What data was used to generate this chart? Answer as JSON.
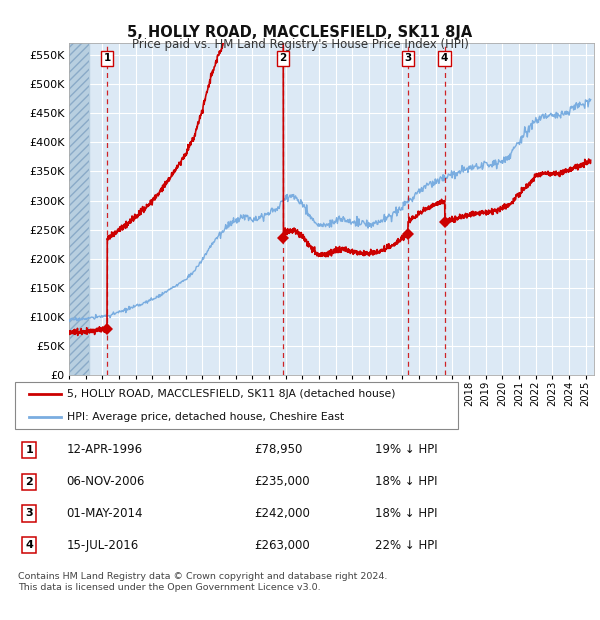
{
  "title": "5, HOLLY ROAD, MACCLESFIELD, SK11 8JA",
  "subtitle": "Price paid vs. HM Land Registry's House Price Index (HPI)",
  "ytick_values": [
    0,
    50000,
    100000,
    150000,
    200000,
    250000,
    300000,
    350000,
    400000,
    450000,
    500000,
    550000
  ],
  "ylim": [
    0,
    570000
  ],
  "xlim_start": 1994.0,
  "xlim_end": 2025.5,
  "plot_bg_color": "#dce9f5",
  "grid_color": "#ffffff",
  "sales": [
    {
      "num": 1,
      "date_num": 1996.28,
      "price": 78950,
      "label": "1"
    },
    {
      "num": 2,
      "date_num": 2006.85,
      "price": 235000,
      "label": "2"
    },
    {
      "num": 3,
      "date_num": 2014.33,
      "price": 242000,
      "label": "3"
    },
    {
      "num": 4,
      "date_num": 2016.54,
      "price": 263000,
      "label": "4"
    }
  ],
  "legend_line1": "5, HOLLY ROAD, MACCLESFIELD, SK11 8JA (detached house)",
  "legend_line2": "HPI: Average price, detached house, Cheshire East",
  "table_rows": [
    {
      "num": "1",
      "date": "12-APR-1996",
      "price": "£78,950",
      "pct": "19% ↓ HPI"
    },
    {
      "num": "2",
      "date": "06-NOV-2006",
      "price": "£235,000",
      "pct": "18% ↓ HPI"
    },
    {
      "num": "3",
      "date": "01-MAY-2014",
      "price": "£242,000",
      "pct": "18% ↓ HPI"
    },
    {
      "num": "4",
      "date": "15-JUL-2016",
      "price": "£263,000",
      "pct": "22% ↓ HPI"
    }
  ],
  "footer": "Contains HM Land Registry data © Crown copyright and database right 2024.\nThis data is licensed under the Open Government Licence v3.0.",
  "sale_color": "#cc0000",
  "hpi_color": "#7aade0",
  "vline_color": "#cc0000",
  "hpi_anchors": [
    [
      1994.0,
      95000
    ],
    [
      1994.5,
      96000
    ],
    [
      1995.0,
      97000
    ],
    [
      1995.5,
      99000
    ],
    [
      1996.0,
      101000
    ],
    [
      1996.5,
      103000
    ],
    [
      1997.0,
      108000
    ],
    [
      1997.5,
      113000
    ],
    [
      1998.0,
      118000
    ],
    [
      1998.5,
      124000
    ],
    [
      1999.0,
      130000
    ],
    [
      1999.5,
      138000
    ],
    [
      2000.0,
      146000
    ],
    [
      2000.5,
      155000
    ],
    [
      2001.0,
      165000
    ],
    [
      2001.5,
      178000
    ],
    [
      2002.0,
      198000
    ],
    [
      2002.5,
      222000
    ],
    [
      2003.0,
      240000
    ],
    [
      2003.5,
      255000
    ],
    [
      2004.0,
      268000
    ],
    [
      2004.5,
      272000
    ],
    [
      2005.0,
      270000
    ],
    [
      2005.5,
      272000
    ],
    [
      2006.0,
      278000
    ],
    [
      2006.5,
      287000
    ],
    [
      2007.0,
      305000
    ],
    [
      2007.5,
      308000
    ],
    [
      2008.0,
      295000
    ],
    [
      2008.5,
      272000
    ],
    [
      2009.0,
      255000
    ],
    [
      2009.5,
      258000
    ],
    [
      2010.0,
      265000
    ],
    [
      2010.5,
      268000
    ],
    [
      2011.0,
      263000
    ],
    [
      2011.5,
      260000
    ],
    [
      2012.0,
      258000
    ],
    [
      2012.5,
      262000
    ],
    [
      2013.0,
      268000
    ],
    [
      2013.5,
      278000
    ],
    [
      2014.0,
      290000
    ],
    [
      2014.5,
      302000
    ],
    [
      2015.0,
      315000
    ],
    [
      2015.5,
      325000
    ],
    [
      2016.0,
      333000
    ],
    [
      2016.5,
      338000
    ],
    [
      2017.0,
      345000
    ],
    [
      2017.5,
      350000
    ],
    [
      2018.0,
      355000
    ],
    [
      2018.5,
      358000
    ],
    [
      2019.0,
      360000
    ],
    [
      2019.5,
      363000
    ],
    [
      2020.0,
      368000
    ],
    [
      2020.5,
      380000
    ],
    [
      2021.0,
      400000
    ],
    [
      2021.5,
      420000
    ],
    [
      2022.0,
      438000
    ],
    [
      2022.5,
      448000
    ],
    [
      2023.0,
      445000
    ],
    [
      2023.5,
      448000
    ],
    [
      2024.0,
      455000
    ],
    [
      2024.5,
      462000
    ],
    [
      2025.0,
      468000
    ],
    [
      2025.3,
      475000
    ]
  ],
  "noise_seed": 17,
  "noise_scale": 3500
}
